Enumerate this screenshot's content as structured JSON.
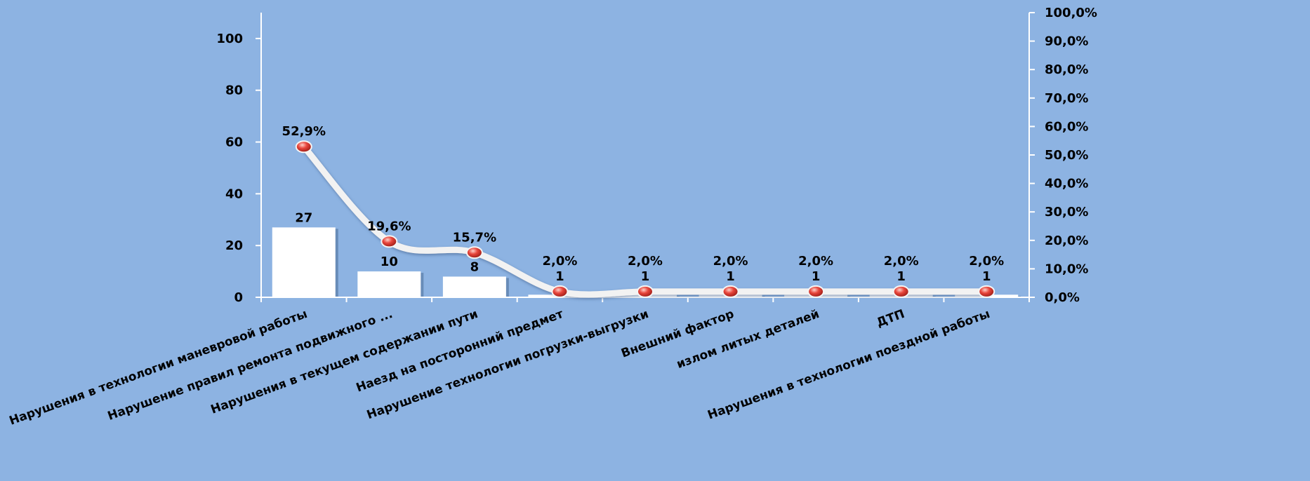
{
  "chart_data": {
    "type": "bar",
    "title": "",
    "xlabel": "",
    "ylabel": "",
    "categories": [
      "Нарушения в технологии маневровой работы",
      "Нарушение правил  ремонта подвижного ...",
      "Нарушения в текущем содержании пути",
      "Наезд на посторонний предмет",
      "Нарушение технологии погрузки-выгрузки",
      "Внешний фактор",
      "излом  литых деталей",
      "ДТП",
      "Нарушения в технологии поездной работы"
    ],
    "series": [
      {
        "type": "bar",
        "axis": "left",
        "values": [
          27,
          10,
          8,
          1,
          1,
          1,
          1,
          1,
          1
        ],
        "value_labels": [
          "27",
          "10",
          "8",
          "1",
          "1",
          "1",
          "1",
          "1",
          "1"
        ]
      },
      {
        "type": "line",
        "axis": "right",
        "smooth": true,
        "values": [
          52.9,
          19.6,
          15.7,
          2.0,
          2.0,
          2.0,
          2.0,
          2.0,
          2.0
        ],
        "value_labels": [
          "52,9%",
          "19,6%",
          "15,7%",
          "2,0%",
          "2,0%",
          "2,0%",
          "2,0%",
          "2,0%",
          "2,0%"
        ]
      }
    ],
    "y_left": {
      "range": [
        0,
        110
      ],
      "ticks": [
        0,
        20,
        40,
        60,
        80,
        100
      ],
      "tick_labels": [
        "0",
        "20",
        "40",
        "60",
        "80",
        "100"
      ]
    },
    "y_right": {
      "range": [
        0,
        100
      ],
      "ticks": [
        0,
        10,
        20,
        30,
        40,
        50,
        60,
        70,
        80,
        90,
        100
      ],
      "tick_labels": [
        "0,0%",
        "10,0%",
        "20,0%",
        "30,0%",
        "40,0%",
        "50,0%",
        "60,0%",
        "70,0%",
        "80,0%",
        "90,0%",
        "100,0%"
      ]
    },
    "grid": false,
    "legend": "none",
    "colors": {
      "background": "#8db3e2",
      "bar": "#ffffff",
      "bar_shadow": "#4a6c96",
      "axis": "#ffffff",
      "line": "#f2f2f2",
      "marker": "#e03a32"
    }
  }
}
